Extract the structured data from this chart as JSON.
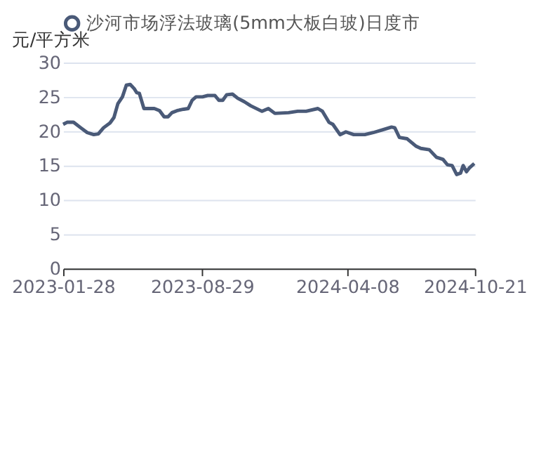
{
  "chart_data": {
    "type": "line",
    "ylabel": "元/平方米",
    "x": [
      "2023-01-28",
      "2023-02-03",
      "2023-02-13",
      "2023-02-24",
      "2023-03-06",
      "2023-03-16",
      "2023-03-23",
      "2023-03-31",
      "2023-04-10",
      "2023-04-16",
      "2023-04-22",
      "2023-04-29",
      "2023-05-05",
      "2023-05-11",
      "2023-05-17",
      "2023-05-21",
      "2023-05-25",
      "2023-06-01",
      "2023-06-17",
      "2023-06-25",
      "2023-07-02",
      "2023-07-08",
      "2023-07-14",
      "2023-07-22",
      "2023-08-01",
      "2023-08-08",
      "2023-08-14",
      "2023-08-20",
      "2023-08-30",
      "2023-09-07",
      "2023-09-18",
      "2023-09-24",
      "2023-09-30",
      "2023-10-06",
      "2023-10-15",
      "2023-10-23",
      "2023-11-02",
      "2023-11-12",
      "2023-11-29",
      "2023-12-09",
      "2023-12-19",
      "2024-01-09",
      "2024-01-23",
      "2024-02-05",
      "2024-02-23",
      "2024-03-01",
      "2024-03-11",
      "2024-03-17",
      "2024-03-28",
      "2024-04-06",
      "2024-04-18",
      "2024-05-05",
      "2024-05-18",
      "2024-06-01",
      "2024-06-15",
      "2024-06-20",
      "2024-06-27",
      "2024-07-09",
      "2024-07-23",
      "2024-07-30",
      "2024-08-12",
      "2024-08-23",
      "2024-09-02",
      "2024-09-09",
      "2024-09-16",
      "2024-09-23",
      "2024-09-29",
      "2024-10-03",
      "2024-10-08",
      "2024-10-13",
      "2024-10-20"
    ],
    "series": [
      {
        "name": "沙河市场浮法玻璃(5mm大板白玻)日度市",
        "color": "#4a5a78",
        "values": [
          21.0,
          21.3,
          21.3,
          20.5,
          19.8,
          19.5,
          19.6,
          20.5,
          21.2,
          22.0,
          24.0,
          25.0,
          26.7,
          26.8,
          26.2,
          25.6,
          25.5,
          23.3,
          23.3,
          23.0,
          22.1,
          22.1,
          22.7,
          23.0,
          23.2,
          23.3,
          24.5,
          25.0,
          25.0,
          25.2,
          25.2,
          24.5,
          24.5,
          25.3,
          25.4,
          24.8,
          24.3,
          23.7,
          22.9,
          23.3,
          22.6,
          22.7,
          22.9,
          22.9,
          23.3,
          22.9,
          21.3,
          21.0,
          19.5,
          19.9,
          19.5,
          19.5,
          19.8,
          20.2,
          20.6,
          20.5,
          19.1,
          18.9,
          17.8,
          17.5,
          17.3,
          16.2,
          15.9,
          15.1,
          15.0,
          13.7,
          13.9,
          15.0,
          14.1,
          14.7,
          15.3
        ]
      }
    ],
    "xlim": [
      "2023-01-28",
      "2024-10-21"
    ],
    "xticks": [
      "2023-01-28",
      "2023-08-29",
      "2024-04-08",
      "2024-10-21"
    ],
    "ylim": [
      0,
      30
    ],
    "yticks": [
      0,
      5,
      10,
      15,
      20,
      25,
      30
    ],
    "grid": "y",
    "legend": "top",
    "marker": "none",
    "line_style": "solid"
  }
}
